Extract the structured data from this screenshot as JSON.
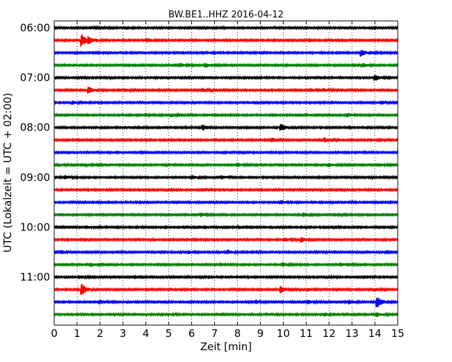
{
  "chart_data": {
    "type": "line",
    "title": "BW.BE1..HHZ 2016-04-12",
    "xlabel": "Zeit  [min]",
    "ylabel": "UTC (Lokalzeit = UTC + 02:00)",
    "xlim": [
      0,
      15
    ],
    "x_ticks": [
      "0",
      "1",
      "2",
      "3",
      "4",
      "5",
      "6",
      "7",
      "8",
      "9",
      "10",
      "11",
      "12",
      "13",
      "14",
      "15"
    ],
    "y_tick_labels": [
      "06:00",
      "07:00",
      "08:00",
      "09:00",
      "10:00",
      "11:00"
    ],
    "grid": "vertical dotted",
    "trace_colors": [
      "#000000",
      "#ff0000",
      "#0000ff",
      "#008000"
    ],
    "traces": [
      {
        "start": "06:00",
        "events": [
          [
            1.6,
            0.15
          ]
        ]
      },
      {
        "start": "06:15",
        "events": [
          [
            1.2,
            1.0
          ],
          [
            1.5,
            0.5
          ],
          [
            4.05,
            0.3
          ]
        ]
      },
      {
        "start": "06:30",
        "events": [
          [
            13.4,
            0.5
          ],
          [
            13.8,
            0.2
          ]
        ]
      },
      {
        "start": "06:45",
        "events": [
          [
            5.5,
            0.25
          ],
          [
            6.6,
            0.3
          ],
          [
            13.1,
            0.2
          ],
          [
            13.5,
            0.25
          ]
        ]
      },
      {
        "start": "07:00",
        "events": [
          [
            14.0,
            0.45
          ]
        ]
      },
      {
        "start": "07:15",
        "events": [
          [
            1.5,
            0.55
          ],
          [
            3.1,
            0.2
          ],
          [
            6.5,
            0.2
          ],
          [
            11.2,
            0.2
          ],
          [
            11.8,
            0.2
          ]
        ]
      },
      {
        "start": "07:30",
        "events": [
          [
            0.8,
            0.25
          ],
          [
            14.3,
            0.2
          ]
        ]
      },
      {
        "start": "07:45",
        "events": [
          [
            4.0,
            0.2
          ],
          [
            5.1,
            0.2
          ],
          [
            12.8,
            0.25
          ]
        ]
      },
      {
        "start": "08:00",
        "events": [
          [
            6.5,
            0.4
          ],
          [
            9.9,
            0.55
          ]
        ]
      },
      {
        "start": "08:15",
        "events": [
          [
            9.5,
            0.3
          ],
          [
            11.8,
            0.35
          ]
        ]
      },
      {
        "start": "08:30",
        "events": []
      },
      {
        "start": "08:45",
        "events": [
          [
            1.2,
            0.15
          ],
          [
            8.0,
            0.25
          ],
          [
            12.0,
            0.25
          ],
          [
            14.2,
            0.25
          ]
        ]
      },
      {
        "start": "09:00",
        "events": [
          [
            0.5,
            0.2
          ],
          [
            6.0,
            0.25
          ],
          [
            7.3,
            0.25
          ]
        ]
      },
      {
        "start": "09:15",
        "events": [
          [
            6.5,
            0.15
          ]
        ]
      },
      {
        "start": "09:30",
        "events": [
          [
            9.9,
            0.3
          ],
          [
            12.7,
            0.15
          ]
        ]
      },
      {
        "start": "09:45",
        "events": [
          [
            6.4,
            0.3
          ],
          [
            10.9,
            0.25
          ],
          [
            12.2,
            0.2
          ]
        ]
      },
      {
        "start": "10:00",
        "events": [
          [
            1.4,
            0.25
          ],
          [
            12.0,
            0.15
          ]
        ]
      },
      {
        "start": "10:15",
        "events": [
          [
            4.8,
            0.15
          ],
          [
            10.1,
            0.25
          ],
          [
            10.8,
            0.3
          ]
        ]
      },
      {
        "start": "10:30",
        "events": [
          [
            0.35,
            0.2
          ],
          [
            5.9,
            0.2
          ],
          [
            7.6,
            0.25
          ],
          [
            11.2,
            0.15
          ],
          [
            14.3,
            0.15
          ]
        ]
      },
      {
        "start": "10:45",
        "events": [
          [
            1.6,
            0.25
          ],
          [
            10.0,
            0.25
          ],
          [
            12.5,
            0.25
          ]
        ]
      },
      {
        "start": "11:00",
        "events": [
          [
            1.2,
            0.15
          ],
          [
            13.7,
            0.15
          ]
        ]
      },
      {
        "start": "11:15",
        "events": [
          [
            1.2,
            1.0
          ],
          [
            9.9,
            0.5
          ],
          [
            11.1,
            0.2
          ],
          [
            14.0,
            0.2
          ]
        ]
      },
      {
        "start": "11:30",
        "events": [
          [
            2.0,
            0.3
          ],
          [
            8.8,
            0.25
          ],
          [
            11.1,
            0.25
          ],
          [
            12.9,
            0.3
          ],
          [
            14.1,
            0.85
          ]
        ]
      },
      {
        "start": "11:45",
        "events": [
          [
            5.0,
            0.15
          ],
          [
            11.8,
            0.2
          ],
          [
            14.1,
            0.3
          ]
        ]
      }
    ]
  }
}
